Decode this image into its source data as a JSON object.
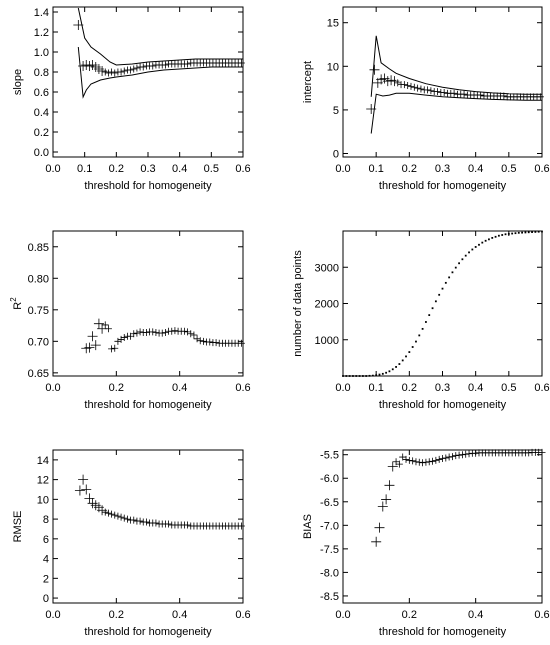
{
  "chart_data": [
    {
      "type": "scatter",
      "xlabel": "threshold for homogeneity",
      "ylabel": "slope",
      "xlim": [
        0.0,
        0.6
      ],
      "ylim": [
        -0.05,
        1.45
      ],
      "xticks": [
        0.0,
        0.1,
        0.2,
        0.3,
        0.4,
        0.5,
        0.6
      ],
      "xtick_labels": [
        "0.0",
        "0.1",
        "0.2",
        "0.3",
        "0.4",
        "0.5",
        "0.6"
      ],
      "yticks": [
        0.0,
        0.2,
        0.4,
        0.6,
        0.8,
        1.0,
        1.2,
        1.4
      ],
      "ytick_labels": [
        "0.0",
        "0.2",
        "0.4",
        "0.6",
        "0.8",
        "1.0",
        "1.2",
        "1.4"
      ],
      "grid": false,
      "series": [
        {
          "marker": "plus",
          "x": [
            0.08,
            0.095,
            0.105,
            0.115,
            0.125,
            0.135,
            0.145,
            0.155,
            0.165,
            0.175,
            0.185,
            0.195,
            0.205,
            0.215,
            0.225,
            0.235,
            0.245,
            0.255,
            0.265,
            0.275,
            0.285,
            0.295,
            0.305,
            0.315,
            0.325,
            0.335,
            0.345,
            0.355,
            0.365,
            0.375,
            0.385,
            0.395,
            0.405,
            0.415,
            0.425,
            0.435,
            0.445,
            0.455,
            0.465,
            0.475,
            0.485,
            0.495,
            0.505,
            0.515,
            0.525,
            0.535,
            0.545,
            0.555,
            0.565,
            0.575,
            0.585,
            0.595
          ],
          "y": [
            1.27,
            0.86,
            0.87,
            0.86,
            0.87,
            0.85,
            0.83,
            0.81,
            0.8,
            0.79,
            0.8,
            0.79,
            0.8,
            0.8,
            0.81,
            0.82,
            0.82,
            0.83,
            0.84,
            0.85,
            0.85,
            0.86,
            0.86,
            0.86,
            0.87,
            0.87,
            0.87,
            0.87,
            0.88,
            0.88,
            0.88,
            0.88,
            0.88,
            0.88,
            0.88,
            0.89,
            0.89,
            0.89,
            0.89,
            0.89,
            0.89,
            0.89,
            0.89,
            0.89,
            0.89,
            0.89,
            0.89,
            0.89,
            0.89,
            0.89,
            0.89,
            0.89
          ]
        },
        {
          "marker": "line",
          "x": [
            0.08,
            0.1,
            0.12,
            0.15,
            0.18,
            0.2,
            0.25,
            0.3,
            0.35,
            0.4,
            0.45,
            0.5,
            0.55,
            0.6
          ],
          "y": [
            1.44,
            1.14,
            1.05,
            0.98,
            0.9,
            0.87,
            0.88,
            0.9,
            0.91,
            0.92,
            0.93,
            0.93,
            0.93,
            0.93
          ]
        },
        {
          "marker": "line",
          "x": [
            0.08,
            0.095,
            0.105,
            0.12,
            0.15,
            0.18,
            0.2,
            0.25,
            0.3,
            0.35,
            0.4,
            0.45,
            0.5,
            0.55,
            0.6
          ],
          "y": [
            1.05,
            0.55,
            0.62,
            0.68,
            0.72,
            0.74,
            0.75,
            0.77,
            0.8,
            0.82,
            0.83,
            0.84,
            0.85,
            0.85,
            0.85
          ]
        }
      ]
    },
    {
      "type": "scatter",
      "xlabel": "threshold for homogeneity",
      "ylabel": "intercept",
      "xlim": [
        0.0,
        0.6
      ],
      "ylim": [
        -0.4,
        16.8
      ],
      "xticks": [
        0.0,
        0.1,
        0.2,
        0.3,
        0.4,
        0.5,
        0.6
      ],
      "xtick_labels": [
        "0.0",
        "0.1",
        "0.2",
        "0.3",
        "0.4",
        "0.5",
        "0.6"
      ],
      "yticks": [
        0,
        5,
        10,
        15
      ],
      "ytick_labels": [
        "0",
        "5",
        "10",
        "15"
      ],
      "grid": false,
      "series": [
        {
          "marker": "plus",
          "x": [
            0.085,
            0.095,
            0.105,
            0.115,
            0.125,
            0.135,
            0.145,
            0.155,
            0.165,
            0.175,
            0.185,
            0.195,
            0.205,
            0.215,
            0.225,
            0.235,
            0.245,
            0.255,
            0.265,
            0.275,
            0.285,
            0.295,
            0.305,
            0.315,
            0.325,
            0.335,
            0.345,
            0.355,
            0.365,
            0.375,
            0.385,
            0.395,
            0.405,
            0.415,
            0.425,
            0.435,
            0.445,
            0.455,
            0.465,
            0.475,
            0.485,
            0.495,
            0.505,
            0.515,
            0.525,
            0.535,
            0.545,
            0.555,
            0.565,
            0.575,
            0.585,
            0.595
          ],
          "y": [
            5.1,
            9.6,
            8.1,
            8.5,
            8.6,
            8.3,
            8.4,
            8.3,
            8.1,
            7.9,
            7.9,
            7.8,
            7.7,
            7.6,
            7.5,
            7.4,
            7.3,
            7.3,
            7.2,
            7.1,
            7.1,
            7.0,
            7.0,
            6.9,
            6.9,
            6.9,
            6.8,
            6.8,
            6.8,
            6.7,
            6.7,
            6.7,
            6.7,
            6.7,
            6.6,
            6.6,
            6.6,
            6.6,
            6.6,
            6.6,
            6.6,
            6.5,
            6.5,
            6.5,
            6.5,
            6.5,
            6.5,
            6.5,
            6.5,
            6.5,
            6.5,
            6.5
          ]
        },
        {
          "marker": "line",
          "x": [
            0.085,
            0.1,
            0.115,
            0.14,
            0.16,
            0.2,
            0.25,
            0.3,
            0.35,
            0.4,
            0.45,
            0.5,
            0.55,
            0.6
          ],
          "y": [
            6.5,
            13.5,
            10.4,
            9.7,
            9.2,
            8.6,
            8.0,
            7.6,
            7.3,
            7.1,
            6.95,
            6.85,
            6.8,
            6.8
          ]
        },
        {
          "marker": "line",
          "x": [
            0.085,
            0.1,
            0.12,
            0.14,
            0.16,
            0.2,
            0.25,
            0.3,
            0.35,
            0.4,
            0.45,
            0.5,
            0.55,
            0.6
          ],
          "y": [
            2.3,
            6.8,
            6.6,
            6.7,
            6.9,
            6.9,
            6.7,
            6.5,
            6.4,
            6.3,
            6.2,
            6.15,
            6.1,
            6.1
          ]
        }
      ]
    },
    {
      "type": "scatter",
      "xlabel": "threshold for homogeneity",
      "ylabel_base": "R",
      "ylabel_sup": "2",
      "xlim": [
        0.0,
        0.6
      ],
      "ylim": [
        0.645,
        0.875
      ],
      "xticks": [
        0.0,
        0.2,
        0.4,
        0.6
      ],
      "xtick_labels": [
        "0.0",
        "0.2",
        "0.4",
        "0.6"
      ],
      "yticks": [
        0.65,
        0.7,
        0.75,
        0.8,
        0.85
      ],
      "ytick_labels": [
        "0.65",
        "0.70",
        "0.75",
        "0.80",
        "0.85"
      ],
      "grid": false,
      "series": [
        {
          "marker": "plus",
          "x": [
            0.105,
            0.115,
            0.125,
            0.135,
            0.145,
            0.155,
            0.165,
            0.175,
            0.185,
            0.195,
            0.205,
            0.215,
            0.225,
            0.235,
            0.245,
            0.255,
            0.265,
            0.275,
            0.285,
            0.295,
            0.305,
            0.315,
            0.325,
            0.335,
            0.345,
            0.355,
            0.365,
            0.375,
            0.385,
            0.395,
            0.405,
            0.415,
            0.425,
            0.435,
            0.445,
            0.455,
            0.465,
            0.475,
            0.485,
            0.495,
            0.505,
            0.515,
            0.525,
            0.535,
            0.545,
            0.555,
            0.565,
            0.575,
            0.585,
            0.595
          ],
          "y": [
            0.689,
            0.69,
            0.708,
            0.694,
            0.728,
            0.72,
            0.726,
            0.72,
            0.688,
            0.689,
            0.7,
            0.703,
            0.706,
            0.708,
            0.708,
            0.712,
            0.713,
            0.715,
            0.714,
            0.714,
            0.715,
            0.715,
            0.714,
            0.713,
            0.713,
            0.714,
            0.716,
            0.716,
            0.717,
            0.716,
            0.716,
            0.716,
            0.715,
            0.712,
            0.71,
            0.704,
            0.701,
            0.7,
            0.699,
            0.699,
            0.698,
            0.698,
            0.697,
            0.697,
            0.697,
            0.697,
            0.697,
            0.697,
            0.697,
            0.697
          ]
        }
      ]
    },
    {
      "type": "scatter",
      "xlabel": "threshold for homogeneity",
      "ylabel": "number of data points",
      "xlim": [
        0.0,
        0.6
      ],
      "ylim": [
        0,
        4000
      ],
      "xticks": [
        0.0,
        0.1,
        0.2,
        0.3,
        0.4,
        0.5,
        0.6
      ],
      "xtick_labels": [
        "0.0",
        "0.1",
        "0.2",
        "0.3",
        "0.4",
        "0.5",
        "0.6"
      ],
      "yticks": [
        1000,
        2000,
        3000
      ],
      "ytick_labels": [
        "1000",
        "2000",
        "3000"
      ],
      "grid": false,
      "series": [
        {
          "marker": "dot",
          "x": [
            0.0,
            0.01,
            0.02,
            0.03,
            0.04,
            0.05,
            0.06,
            0.07,
            0.08,
            0.09,
            0.1,
            0.11,
            0.12,
            0.13,
            0.14,
            0.15,
            0.16,
            0.17,
            0.18,
            0.19,
            0.2,
            0.21,
            0.22,
            0.23,
            0.24,
            0.25,
            0.26,
            0.27,
            0.28,
            0.29,
            0.3,
            0.31,
            0.32,
            0.33,
            0.34,
            0.35,
            0.36,
            0.37,
            0.38,
            0.39,
            0.4,
            0.41,
            0.42,
            0.43,
            0.44,
            0.45,
            0.46,
            0.47,
            0.48,
            0.49,
            0.5,
            0.51,
            0.52,
            0.53,
            0.54,
            0.55,
            0.56,
            0.57,
            0.58,
            0.59,
            0.6
          ],
          "y": [
            0,
            0,
            0,
            0,
            0,
            0,
            0,
            0,
            5,
            10,
            22,
            40,
            60,
            90,
            130,
            185,
            250,
            330,
            430,
            540,
            660,
            800,
            950,
            1120,
            1300,
            1490,
            1680,
            1870,
            2060,
            2240,
            2410,
            2570,
            2720,
            2860,
            2990,
            3110,
            3220,
            3320,
            3410,
            3490,
            3560,
            3620,
            3680,
            3730,
            3770,
            3810,
            3840,
            3870,
            3890,
            3910,
            3920,
            3930,
            3940,
            3950,
            3955,
            3960,
            3965,
            3970,
            3975,
            3980,
            3985
          ]
        }
      ]
    },
    {
      "type": "scatter",
      "xlabel": "threshold for homogeneity",
      "ylabel": "RMSE",
      "xlim": [
        0.0,
        0.6
      ],
      "ylim": [
        -0.5,
        15.0
      ],
      "xticks": [
        0.0,
        0.2,
        0.4,
        0.6
      ],
      "xtick_labels": [
        "0.0",
        "0.2",
        "0.4",
        "0.6"
      ],
      "yticks": [
        0,
        2,
        4,
        6,
        8,
        10,
        12,
        14
      ],
      "ytick_labels": [
        "0",
        "2",
        "4",
        "6",
        "8",
        "10",
        "12",
        "14"
      ],
      "grid": false,
      "series": [
        {
          "marker": "plus",
          "x": [
            0.085,
            0.095,
            0.105,
            0.115,
            0.125,
            0.135,
            0.145,
            0.155,
            0.165,
            0.175,
            0.185,
            0.195,
            0.205,
            0.215,
            0.225,
            0.235,
            0.245,
            0.255,
            0.265,
            0.275,
            0.285,
            0.295,
            0.305,
            0.315,
            0.325,
            0.335,
            0.345,
            0.355,
            0.365,
            0.375,
            0.385,
            0.395,
            0.405,
            0.415,
            0.425,
            0.435,
            0.445,
            0.455,
            0.465,
            0.475,
            0.485,
            0.495,
            0.505,
            0.515,
            0.525,
            0.535,
            0.545,
            0.555,
            0.565,
            0.575,
            0.585,
            0.595
          ],
          "y": [
            10.9,
            12.0,
            11.0,
            10.1,
            9.6,
            9.4,
            9.2,
            8.9,
            8.7,
            8.6,
            8.5,
            8.4,
            8.3,
            8.2,
            8.1,
            8.0,
            7.9,
            7.9,
            7.8,
            7.8,
            7.7,
            7.7,
            7.6,
            7.6,
            7.6,
            7.5,
            7.5,
            7.5,
            7.5,
            7.4,
            7.4,
            7.4,
            7.4,
            7.4,
            7.4,
            7.3,
            7.3,
            7.3,
            7.3,
            7.3,
            7.3,
            7.3,
            7.3,
            7.3,
            7.3,
            7.3,
            7.3,
            7.3,
            7.3,
            7.3,
            7.3,
            7.3
          ]
        }
      ]
    },
    {
      "type": "scatter",
      "xlabel": "threshold for homogeneity",
      "ylabel": "BIAS",
      "xlim": [
        0.0,
        0.6
      ],
      "ylim": [
        -8.65,
        -5.4
      ],
      "xticks": [
        0.0,
        0.2,
        0.4,
        0.6
      ],
      "xtick_labels": [
        "0.0",
        "0.2",
        "0.4",
        "0.6"
      ],
      "yticks": [
        -8.5,
        -8.0,
        -7.5,
        -7.0,
        -6.5,
        -6.0,
        -5.5
      ],
      "ytick_labels": [
        "-8.5",
        "-8.0",
        "-7.5",
        "-7.0",
        "-6.5",
        "-6.0",
        "-5.5"
      ],
      "grid": false,
      "series": [
        {
          "marker": "plus",
          "x": [
            0.1,
            0.11,
            0.12,
            0.13,
            0.14,
            0.15,
            0.16,
            0.17,
            0.18,
            0.19,
            0.2,
            0.21,
            0.22,
            0.23,
            0.24,
            0.25,
            0.26,
            0.27,
            0.28,
            0.29,
            0.3,
            0.31,
            0.32,
            0.33,
            0.34,
            0.35,
            0.36,
            0.37,
            0.38,
            0.39,
            0.4,
            0.41,
            0.42,
            0.43,
            0.44,
            0.45,
            0.46,
            0.47,
            0.48,
            0.49,
            0.5,
            0.51,
            0.52,
            0.53,
            0.54,
            0.55,
            0.56,
            0.57,
            0.58,
            0.59,
            0.6
          ],
          "y": [
            -7.35,
            -7.05,
            -6.6,
            -6.45,
            -6.15,
            -5.75,
            -5.65,
            -5.7,
            -5.55,
            -5.6,
            -5.62,
            -5.63,
            -5.65,
            -5.66,
            -5.67,
            -5.66,
            -5.65,
            -5.64,
            -5.62,
            -5.6,
            -5.58,
            -5.57,
            -5.55,
            -5.54,
            -5.52,
            -5.51,
            -5.5,
            -5.49,
            -5.48,
            -5.47,
            -5.47,
            -5.46,
            -5.46,
            -5.46,
            -5.46,
            -5.46,
            -5.46,
            -5.46,
            -5.46,
            -5.46,
            -5.46,
            -5.46,
            -5.46,
            -5.46,
            -5.46,
            -5.46,
            -5.46,
            -5.45,
            -5.45,
            -5.45,
            -5.45
          ]
        }
      ]
    }
  ]
}
